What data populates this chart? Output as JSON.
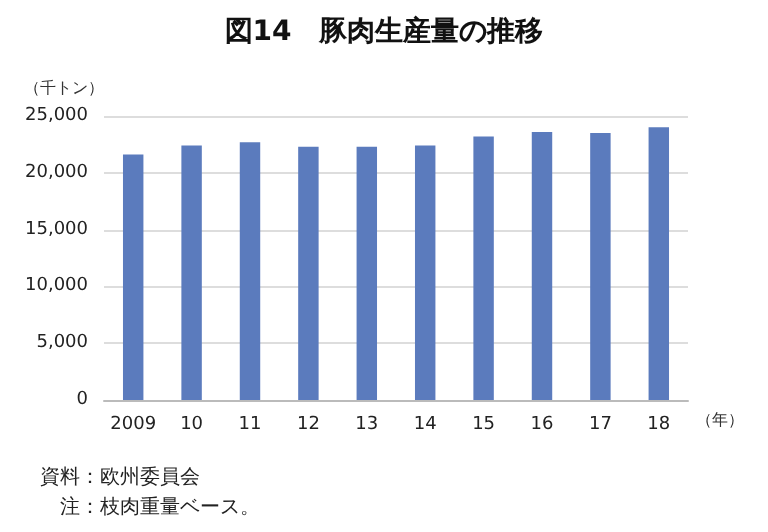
{
  "chart_data": {
    "type": "bar",
    "title": "図14　豚肉生産量の推移",
    "ylabel": "（千トン）",
    "xlabel": "（年）",
    "categories": [
      "2009",
      "10",
      "11",
      "12",
      "13",
      "14",
      "15",
      "16",
      "17",
      "18"
    ],
    "values": [
      21600,
      22400,
      22700,
      22300,
      22300,
      22400,
      23200,
      23600,
      23500,
      24000
    ],
    "color": "#5b7bbd",
    "ylim": [
      0,
      25000
    ],
    "yticks": [
      0,
      {
        "value": 5000,
        "label": "5,000"
      },
      {
        "value": 10000,
        "label": "10,000"
      },
      {
        "value": 15000,
        "label": "15,000"
      },
      {
        "value": 20000,
        "label": "20,000"
      },
      {
        "value": 25000,
        "label": "25,000"
      }
    ],
    "grid": "y",
    "annotations": [
      "資料：欧州委員会",
      "　注：枝肉重量ベース。"
    ]
  }
}
